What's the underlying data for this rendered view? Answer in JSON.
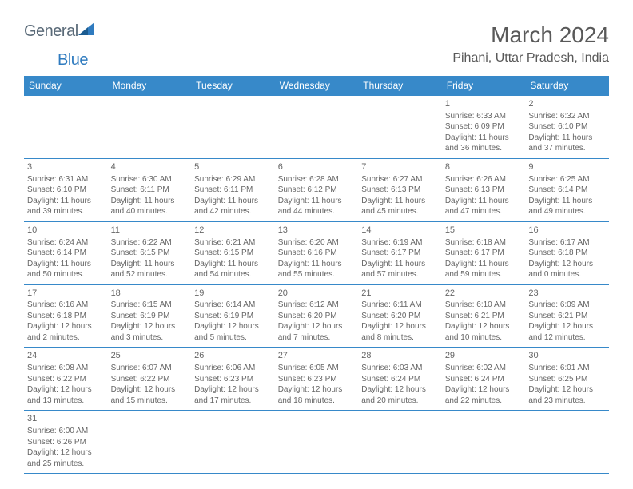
{
  "logo": {
    "word1": "General",
    "word2": "Blue"
  },
  "title": "March 2024",
  "location": "Pihani, Uttar Pradesh, India",
  "colors": {
    "header_bg": "#3789c9",
    "header_text": "#ffffff",
    "cell_border": "#3789c9",
    "body_text": "#666666",
    "title_text": "#595959",
    "logo_gray": "#5a6a78",
    "logo_blue": "#2f7bbf",
    "background": "#ffffff"
  },
  "fonts": {
    "title_size": 28,
    "location_size": 16,
    "header_cell_size": 12,
    "body_cell_size": 10,
    "daynum_size": 11,
    "logo_size": 20
  },
  "day_headers": [
    "Sunday",
    "Monday",
    "Tuesday",
    "Wednesday",
    "Thursday",
    "Friday",
    "Saturday"
  ],
  "weeks": [
    [
      null,
      null,
      null,
      null,
      null,
      {
        "n": "1",
        "sr": "6:33 AM",
        "ss": "6:09 PM",
        "dl": "11 hours and 36 minutes."
      },
      {
        "n": "2",
        "sr": "6:32 AM",
        "ss": "6:10 PM",
        "dl": "11 hours and 37 minutes."
      }
    ],
    [
      {
        "n": "3",
        "sr": "6:31 AM",
        "ss": "6:10 PM",
        "dl": "11 hours and 39 minutes."
      },
      {
        "n": "4",
        "sr": "6:30 AM",
        "ss": "6:11 PM",
        "dl": "11 hours and 40 minutes."
      },
      {
        "n": "5",
        "sr": "6:29 AM",
        "ss": "6:11 PM",
        "dl": "11 hours and 42 minutes."
      },
      {
        "n": "6",
        "sr": "6:28 AM",
        "ss": "6:12 PM",
        "dl": "11 hours and 44 minutes."
      },
      {
        "n": "7",
        "sr": "6:27 AM",
        "ss": "6:13 PM",
        "dl": "11 hours and 45 minutes."
      },
      {
        "n": "8",
        "sr": "6:26 AM",
        "ss": "6:13 PM",
        "dl": "11 hours and 47 minutes."
      },
      {
        "n": "9",
        "sr": "6:25 AM",
        "ss": "6:14 PM",
        "dl": "11 hours and 49 minutes."
      }
    ],
    [
      {
        "n": "10",
        "sr": "6:24 AM",
        "ss": "6:14 PM",
        "dl": "11 hours and 50 minutes."
      },
      {
        "n": "11",
        "sr": "6:22 AM",
        "ss": "6:15 PM",
        "dl": "11 hours and 52 minutes."
      },
      {
        "n": "12",
        "sr": "6:21 AM",
        "ss": "6:15 PM",
        "dl": "11 hours and 54 minutes."
      },
      {
        "n": "13",
        "sr": "6:20 AM",
        "ss": "6:16 PM",
        "dl": "11 hours and 55 minutes."
      },
      {
        "n": "14",
        "sr": "6:19 AM",
        "ss": "6:17 PM",
        "dl": "11 hours and 57 minutes."
      },
      {
        "n": "15",
        "sr": "6:18 AM",
        "ss": "6:17 PM",
        "dl": "11 hours and 59 minutes."
      },
      {
        "n": "16",
        "sr": "6:17 AM",
        "ss": "6:18 PM",
        "dl": "12 hours and 0 minutes."
      }
    ],
    [
      {
        "n": "17",
        "sr": "6:16 AM",
        "ss": "6:18 PM",
        "dl": "12 hours and 2 minutes."
      },
      {
        "n": "18",
        "sr": "6:15 AM",
        "ss": "6:19 PM",
        "dl": "12 hours and 3 minutes."
      },
      {
        "n": "19",
        "sr": "6:14 AM",
        "ss": "6:19 PM",
        "dl": "12 hours and 5 minutes."
      },
      {
        "n": "20",
        "sr": "6:12 AM",
        "ss": "6:20 PM",
        "dl": "12 hours and 7 minutes."
      },
      {
        "n": "21",
        "sr": "6:11 AM",
        "ss": "6:20 PM",
        "dl": "12 hours and 8 minutes."
      },
      {
        "n": "22",
        "sr": "6:10 AM",
        "ss": "6:21 PM",
        "dl": "12 hours and 10 minutes."
      },
      {
        "n": "23",
        "sr": "6:09 AM",
        "ss": "6:21 PM",
        "dl": "12 hours and 12 minutes."
      }
    ],
    [
      {
        "n": "24",
        "sr": "6:08 AM",
        "ss": "6:22 PM",
        "dl": "12 hours and 13 minutes."
      },
      {
        "n": "25",
        "sr": "6:07 AM",
        "ss": "6:22 PM",
        "dl": "12 hours and 15 minutes."
      },
      {
        "n": "26",
        "sr": "6:06 AM",
        "ss": "6:23 PM",
        "dl": "12 hours and 17 minutes."
      },
      {
        "n": "27",
        "sr": "6:05 AM",
        "ss": "6:23 PM",
        "dl": "12 hours and 18 minutes."
      },
      {
        "n": "28",
        "sr": "6:03 AM",
        "ss": "6:24 PM",
        "dl": "12 hours and 20 minutes."
      },
      {
        "n": "29",
        "sr": "6:02 AM",
        "ss": "6:24 PM",
        "dl": "12 hours and 22 minutes."
      },
      {
        "n": "30",
        "sr": "6:01 AM",
        "ss": "6:25 PM",
        "dl": "12 hours and 23 minutes."
      }
    ],
    [
      {
        "n": "31",
        "sr": "6:00 AM",
        "ss": "6:26 PM",
        "dl": "12 hours and 25 minutes."
      },
      null,
      null,
      null,
      null,
      null,
      null
    ]
  ],
  "labels": {
    "sunrise": "Sunrise: ",
    "sunset": "Sunset: ",
    "daylight": "Daylight: "
  }
}
